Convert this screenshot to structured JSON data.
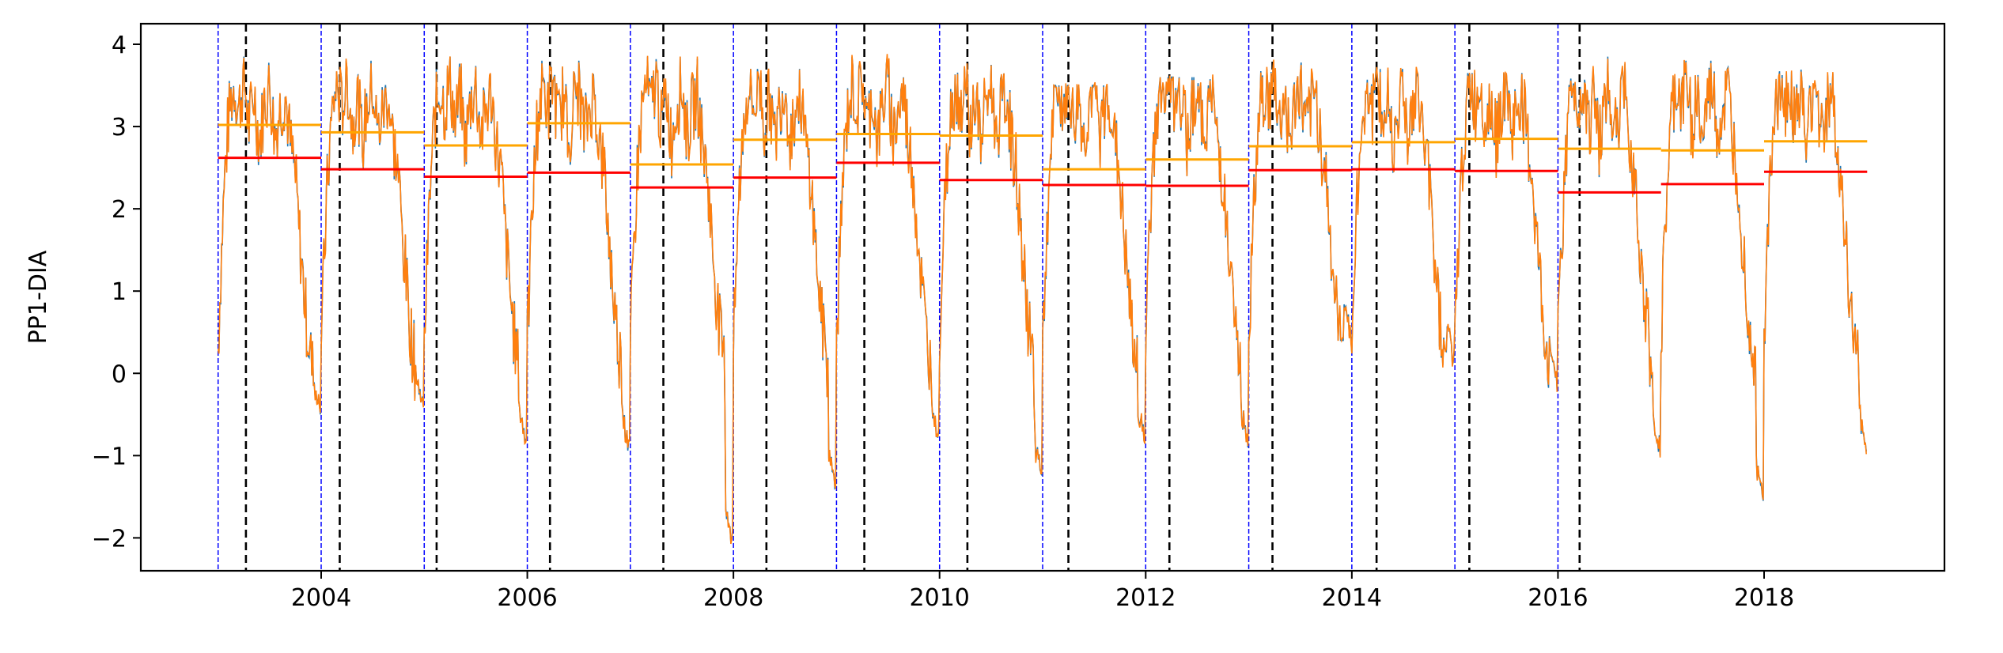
{
  "chart_data": {
    "type": "line",
    "title": "",
    "xlabel": "",
    "ylabel": "PP1-DIA",
    "xlim": [
      2002.25,
      2019.75
    ],
    "ylim": [
      -2.4,
      4.25
    ],
    "x_ticks": [
      2004,
      2006,
      2008,
      2010,
      2012,
      2014,
      2016,
      2018
    ],
    "x_tick_labels": [
      "2004",
      "2006",
      "2008",
      "2010",
      "2012",
      "2014",
      "2016",
      "2018"
    ],
    "y_ticks": [
      -2,
      -1,
      0,
      1,
      2,
      3,
      4
    ],
    "y_tick_labels": [
      "−2",
      "−1",
      "0",
      "1",
      "2",
      "3",
      "4"
    ],
    "grid": false,
    "legend": "none",
    "colors": {
      "series_blue": "#1f77b4",
      "series_orange": "#ff7f0e",
      "mean_line": "#ffa500",
      "median_line": "#ff0000",
      "year_boundary": "#0000ff",
      "event_marker": "#000000"
    },
    "series_profile": {
      "year_start": 2003,
      "year_end": 2019,
      "x": [
        0.0,
        0.03,
        0.06,
        0.09,
        0.12,
        0.16,
        0.2,
        0.25,
        0.3,
        0.35,
        0.4,
        0.45,
        0.5,
        0.55,
        0.6,
        0.65,
        0.7,
        0.75,
        0.78,
        0.82,
        0.86,
        0.9,
        0.94,
        0.97,
        1.0
      ],
      "y": [
        0.3,
        1.4,
        2.3,
        2.9,
        3.3,
        3.5,
        3.2,
        3.6,
        3.0,
        3.4,
        2.8,
        3.3,
        3.5,
        2.9,
        3.2,
        3.4,
        2.8,
        2.4,
        1.8,
        1.2,
        0.6,
        0.2,
        -0.2,
        -0.5,
        0.2
      ]
    },
    "year_minima": [
      {
        "year": 2003,
        "min": -0.5,
        "max": 3.85
      },
      {
        "year": 2004,
        "min": -0.5,
        "max": 3.8
      },
      {
        "year": 2005,
        "min": -0.9,
        "max": 3.85
      },
      {
        "year": 2006,
        "min": -1.0,
        "max": 3.8
      },
      {
        "year": 2007,
        "min": -2.1,
        "max": 3.85
      },
      {
        "year": 2008,
        "min": -1.4,
        "max": 3.7
      },
      {
        "year": 2009,
        "min": -0.8,
        "max": 3.85
      },
      {
        "year": 2010,
        "min": -1.3,
        "max": 3.75
      },
      {
        "year": 2011,
        "min": -0.9,
        "max": 3.5
      },
      {
        "year": 2012,
        "min": -0.9,
        "max": 3.6
      },
      {
        "year": 2013,
        "min": 0.4,
        "max": 3.9
      },
      {
        "year": 2014,
        "min": 0.1,
        "max": 3.7
      },
      {
        "year": 2015,
        "min": -0.2,
        "max": 3.65
      },
      {
        "year": 2016,
        "min": -1.0,
        "max": 3.85
      },
      {
        "year": 2017,
        "min": -1.55,
        "max": 3.8
      },
      {
        "year": 2018,
        "min": -0.95,
        "max": 3.8
      }
    ],
    "year_boundaries": [
      2003,
      2004,
      2005,
      2006,
      2007,
      2008,
      2009,
      2010,
      2011,
      2012,
      2013,
      2014,
      2015,
      2016
    ],
    "event_markers": [
      2003.27,
      2004.18,
      2005.12,
      2006.22,
      2007.32,
      2008.32,
      2009.27,
      2010.27,
      2011.25,
      2012.23,
      2013.23,
      2014.24,
      2015.14,
      2016.21
    ],
    "annual_mean": [
      {
        "x0": 2003,
        "x1": 2004,
        "y": 3.02
      },
      {
        "x0": 2004,
        "x1": 2005,
        "y": 2.93
      },
      {
        "x0": 2005,
        "x1": 2006,
        "y": 2.77
      },
      {
        "x0": 2006,
        "x1": 2007,
        "y": 3.04
      },
      {
        "x0": 2007,
        "x1": 2008,
        "y": 2.54
      },
      {
        "x0": 2008,
        "x1": 2009,
        "y": 2.84
      },
      {
        "x0": 2009,
        "x1": 2010,
        "y": 2.91
      },
      {
        "x0": 2010,
        "x1": 2011,
        "y": 2.89
      },
      {
        "x0": 2011,
        "x1": 2012,
        "y": 2.48
      },
      {
        "x0": 2012,
        "x1": 2013,
        "y": 2.6
      },
      {
        "x0": 2013,
        "x1": 2014,
        "y": 2.76
      },
      {
        "x0": 2014,
        "x1": 2015,
        "y": 2.81
      },
      {
        "x0": 2015,
        "x1": 2016,
        "y": 2.85
      },
      {
        "x0": 2016,
        "x1": 2017,
        "y": 2.73
      },
      {
        "x0": 2017,
        "x1": 2018,
        "y": 2.71
      },
      {
        "x0": 2018,
        "x1": 2019,
        "y": 2.82
      }
    ],
    "annual_median": [
      {
        "x0": 2003,
        "x1": 2004,
        "y": 2.62
      },
      {
        "x0": 2004,
        "x1": 2005,
        "y": 2.48
      },
      {
        "x0": 2005,
        "x1": 2006,
        "y": 2.39
      },
      {
        "x0": 2006,
        "x1": 2007,
        "y": 2.44
      },
      {
        "x0": 2007,
        "x1": 2008,
        "y": 2.26
      },
      {
        "x0": 2008,
        "x1": 2009,
        "y": 2.38
      },
      {
        "x0": 2009,
        "x1": 2010,
        "y": 2.56
      },
      {
        "x0": 2010,
        "x1": 2011,
        "y": 2.35
      },
      {
        "x0": 2011,
        "x1": 2012,
        "y": 2.29
      },
      {
        "x0": 2012,
        "x1": 2013,
        "y": 2.28
      },
      {
        "x0": 2013,
        "x1": 2014,
        "y": 2.47
      },
      {
        "x0": 2014,
        "x1": 2015,
        "y": 2.48
      },
      {
        "x0": 2015,
        "x1": 2016,
        "y": 2.46
      },
      {
        "x0": 2016,
        "x1": 2017,
        "y": 2.2
      },
      {
        "x0": 2017,
        "x1": 2018,
        "y": 2.3
      },
      {
        "x0": 2018,
        "x1": 2019,
        "y": 2.45
      }
    ]
  }
}
